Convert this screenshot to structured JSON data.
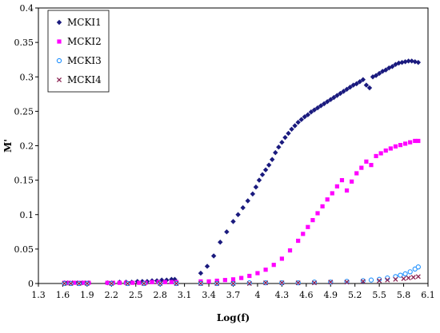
{
  "chart_data": {
    "type": "scatter",
    "title": "",
    "xlabel": "Log(f)",
    "ylabel": "M'",
    "xlim": [
      1.3,
      6.1
    ],
    "ylim": [
      0,
      0.4
    ],
    "xticks": [
      1.3,
      1.6,
      1.9,
      2.2,
      2.5,
      2.8,
      3.1,
      3.4,
      3.7,
      4.0,
      4.3,
      4.6,
      4.9,
      5.2,
      5.5,
      5.8,
      6.1
    ],
    "xtick_labels": [
      "1.3",
      "1.6",
      "1.9",
      "2.2",
      "2.5",
      "2.8",
      "3.1",
      "3.4",
      "3.7",
      "4",
      "4.3",
      "4.6",
      "4.9",
      "5.2",
      "5.5",
      "5.8",
      "6.1"
    ],
    "yticks": [
      0,
      0.05,
      0.1,
      0.15,
      0.2,
      0.25,
      0.3,
      0.35,
      0.4
    ],
    "ytick_labels": [
      "0",
      "0.05",
      "0.1",
      "0.15",
      "0.2",
      "0.25",
      "0.3",
      "0.35",
      "0.4"
    ],
    "grid": false,
    "legend_position": "top-left",
    "series": [
      {
        "name": "MCKI1",
        "marker": "diamond",
        "color": "#1a1a7e",
        "x": [
          1.62,
          1.66,
          1.72,
          1.78,
          1.84,
          1.88,
          1.92,
          2.15,
          2.2,
          2.3,
          2.38,
          2.45,
          2.52,
          2.58,
          2.64,
          2.7,
          2.76,
          2.82,
          2.88,
          2.94,
          2.98,
          3.3,
          3.38,
          3.46,
          3.54,
          3.62,
          3.7,
          3.76,
          3.82,
          3.88,
          3.94,
          3.98,
          4.02,
          4.06,
          4.1,
          4.14,
          4.18,
          4.22,
          4.26,
          4.3,
          4.34,
          4.38,
          4.42,
          4.46,
          4.5,
          4.54,
          4.58,
          4.62,
          4.66,
          4.7,
          4.74,
          4.78,
          4.82,
          4.86,
          4.9,
          4.94,
          4.98,
          5.02,
          5.06,
          5.1,
          5.14,
          5.18,
          5.22,
          5.26,
          5.3,
          5.34,
          5.38,
          5.42,
          5.46,
          5.5,
          5.54,
          5.58,
          5.62,
          5.66,
          5.7,
          5.74,
          5.78,
          5.82,
          5.86,
          5.9,
          5.94,
          5.98
        ],
        "y": [
          0.001,
          0.001,
          0.001,
          0.001,
          0.001,
          0.001,
          0.001,
          0.001,
          0.001,
          0.002,
          0.002,
          0.002,
          0.003,
          0.003,
          0.003,
          0.004,
          0.004,
          0.005,
          0.005,
          0.006,
          0.006,
          0.015,
          0.025,
          0.04,
          0.06,
          0.075,
          0.09,
          0.1,
          0.11,
          0.12,
          0.13,
          0.14,
          0.15,
          0.158,
          0.165,
          0.172,
          0.18,
          0.19,
          0.198,
          0.205,
          0.212,
          0.218,
          0.224,
          0.229,
          0.234,
          0.238,
          0.242,
          0.245,
          0.249,
          0.252,
          0.255,
          0.258,
          0.261,
          0.264,
          0.267,
          0.27,
          0.273,
          0.276,
          0.279,
          0.282,
          0.285,
          0.288,
          0.29,
          0.293,
          0.296,
          0.288,
          0.284,
          0.3,
          0.302,
          0.305,
          0.308,
          0.31,
          0.313,
          0.315,
          0.318,
          0.32,
          0.321,
          0.322,
          0.323,
          0.323,
          0.322,
          0.321
        ]
      },
      {
        "name": "MCKI2",
        "marker": "square",
        "color": "#ff00ff",
        "x": [
          1.62,
          1.68,
          1.74,
          1.8,
          1.86,
          1.92,
          2.15,
          2.22,
          2.3,
          2.38,
          2.46,
          2.54,
          2.62,
          2.7,
          2.78,
          2.86,
          2.94,
          3.0,
          3.3,
          3.4,
          3.5,
          3.6,
          3.7,
          3.8,
          3.9,
          4.0,
          4.1,
          4.2,
          4.3,
          4.4,
          4.5,
          4.56,
          4.62,
          4.68,
          4.74,
          4.8,
          4.86,
          4.92,
          4.98,
          5.04,
          5.1,
          5.16,
          5.22,
          5.28,
          5.34,
          5.4,
          5.46,
          5.52,
          5.58,
          5.64,
          5.7,
          5.76,
          5.82,
          5.88,
          5.94,
          5.98
        ],
        "y": [
          0.001,
          0.001,
          0.001,
          0.001,
          0.001,
          0.001,
          0.001,
          0.001,
          0.001,
          0.001,
          0.001,
          0.001,
          0.001,
          0.002,
          0.002,
          0.002,
          0.002,
          0.002,
          0.003,
          0.003,
          0.004,
          0.005,
          0.006,
          0.008,
          0.011,
          0.015,
          0.02,
          0.027,
          0.036,
          0.048,
          0.062,
          0.072,
          0.082,
          0.092,
          0.102,
          0.112,
          0.122,
          0.131,
          0.141,
          0.15,
          0.135,
          0.148,
          0.16,
          0.168,
          0.177,
          0.172,
          0.185,
          0.189,
          0.193,
          0.196,
          0.199,
          0.201,
          0.203,
          0.205,
          0.207,
          0.207
        ]
      },
      {
        "name": "MCKI3",
        "marker": "circle-open",
        "color": "#1e90ff",
        "x": [
          1.62,
          1.7,
          1.8,
          1.9,
          2.2,
          2.4,
          2.6,
          2.8,
          3.0,
          3.3,
          3.5,
          3.7,
          3.9,
          4.1,
          4.3,
          4.5,
          4.7,
          4.9,
          5.1,
          5.3,
          5.4,
          5.5,
          5.6,
          5.7,
          5.76,
          5.82,
          5.88,
          5.94,
          5.98
        ],
        "y": [
          0.0,
          0.0,
          0.0,
          0.0,
          0.0,
          0.0,
          0.0,
          0.0,
          0.0,
          0.0,
          0.0,
          0.0,
          0.001,
          0.001,
          0.001,
          0.001,
          0.002,
          0.002,
          0.003,
          0.004,
          0.005,
          0.006,
          0.008,
          0.01,
          0.012,
          0.014,
          0.017,
          0.021,
          0.024
        ]
      },
      {
        "name": "MCKI4",
        "marker": "x",
        "color": "#8b2252",
        "x": [
          1.62,
          1.7,
          1.8,
          1.9,
          2.2,
          2.4,
          2.6,
          2.8,
          3.0,
          3.3,
          3.5,
          3.7,
          3.9,
          4.1,
          4.3,
          4.5,
          4.7,
          4.9,
          5.1,
          5.3,
          5.5,
          5.6,
          5.7,
          5.8,
          5.86,
          5.92,
          5.98
        ],
        "y": [
          0.0,
          0.0,
          0.0,
          0.0,
          0.0,
          0.0,
          0.0,
          0.0,
          0.0,
          0.0,
          0.0,
          0.0,
          0.0,
          0.001,
          0.001,
          0.001,
          0.001,
          0.002,
          0.002,
          0.003,
          0.004,
          0.005,
          0.006,
          0.007,
          0.008,
          0.009,
          0.01
        ]
      }
    ]
  }
}
